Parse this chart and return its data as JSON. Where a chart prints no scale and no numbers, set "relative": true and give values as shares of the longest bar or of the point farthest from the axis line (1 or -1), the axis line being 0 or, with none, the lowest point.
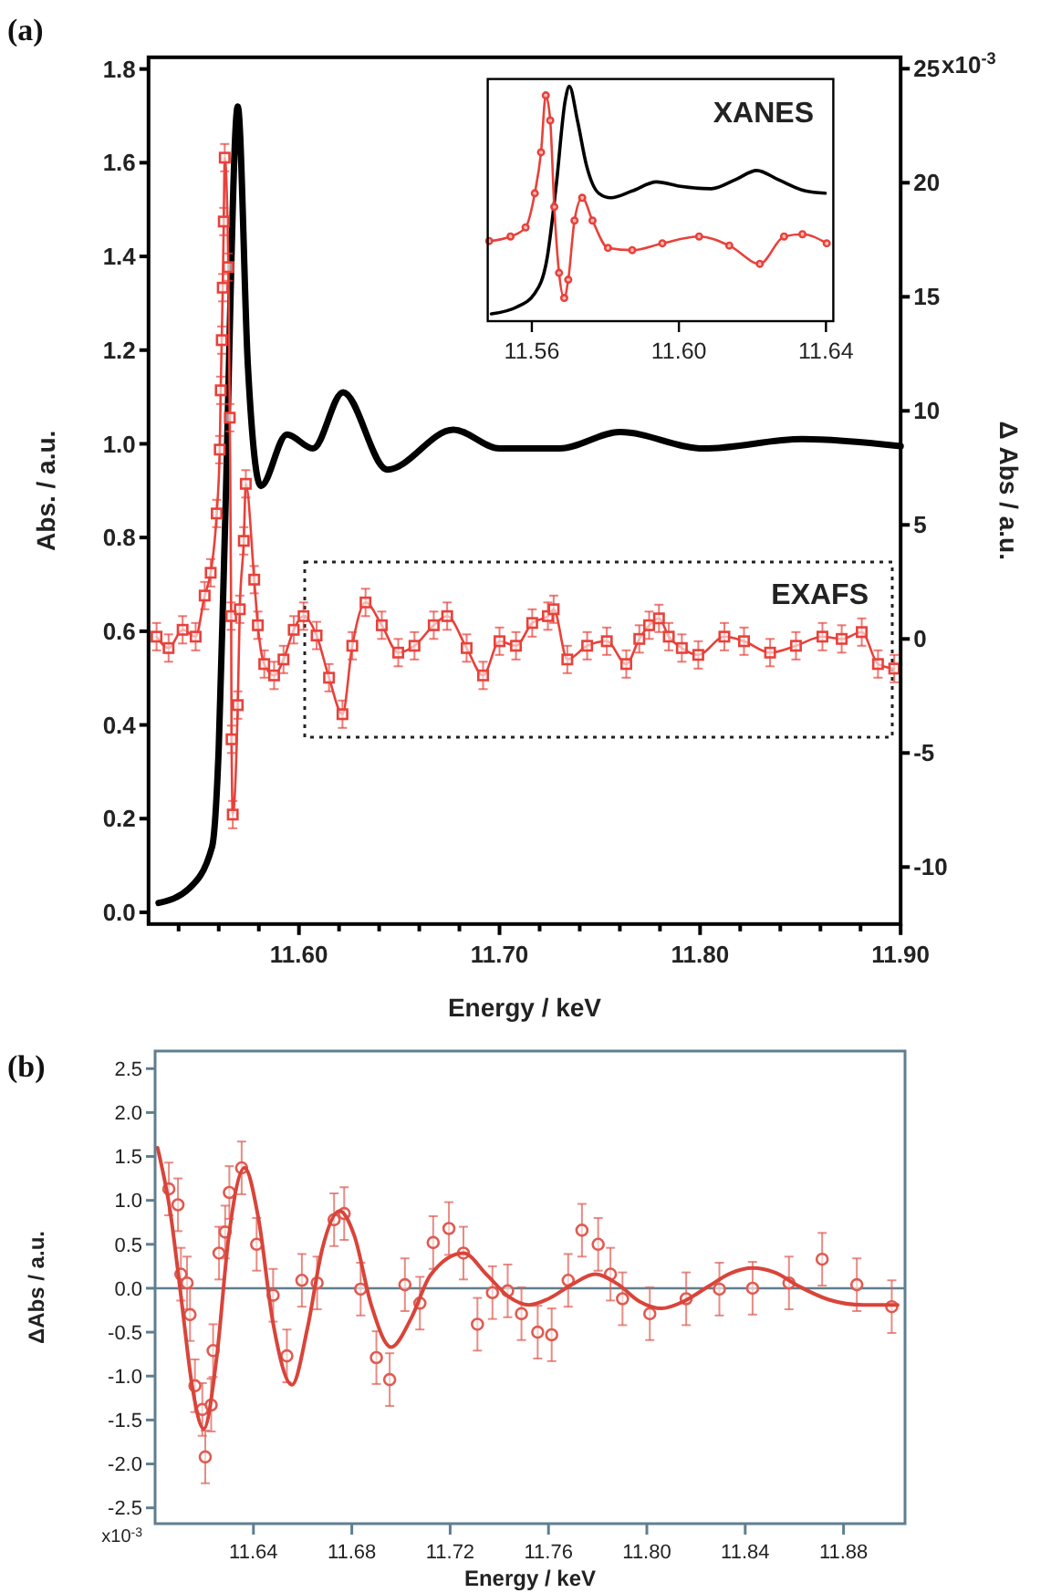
{
  "chart_data": [
    {
      "type": "line",
      "title": "(a)",
      "xlabel": "Energy / keV",
      "ylabel": "Abs. / a.u.",
      "y2label": "Δ Abs / a.u.",
      "xlim": [
        11.525,
        11.9
      ],
      "xticks": [
        {
          "value": 11.54,
          "label": null
        },
        {
          "value": 11.56,
          "label": null
        },
        {
          "value": 11.58,
          "label": null
        },
        {
          "value": 11.6,
          "label": "11.60"
        },
        {
          "value": 11.62,
          "label": null
        },
        {
          "value": 11.64,
          "label": null
        },
        {
          "value": 11.66,
          "label": null
        },
        {
          "value": 11.68,
          "label": null
        },
        {
          "value": 11.7,
          "label": "11.70"
        },
        {
          "value": 11.72,
          "label": null
        },
        {
          "value": 11.74,
          "label": null
        },
        {
          "value": 11.76,
          "label": null
        },
        {
          "value": 11.78,
          "label": null
        },
        {
          "value": 11.8,
          "label": "11.80"
        },
        {
          "value": 11.82,
          "label": null
        },
        {
          "value": 11.84,
          "label": null
        },
        {
          "value": 11.86,
          "label": null
        },
        {
          "value": 11.88,
          "label": null
        },
        {
          "value": 11.9,
          "label": "11.90"
        }
      ],
      "ylim": [
        -0.025,
        1.825
      ],
      "yticks": [
        {
          "value": 0,
          "label": "0.0"
        },
        0.2,
        0.4,
        0.6,
        0.8,
        {
          "value": 1,
          "label": "1.0"
        },
        1.2,
        1.4,
        1.6,
        1.8
      ],
      "y2lim": [
        -12.5,
        25.5
      ],
      "y2ticks": [
        -10,
        -5,
        0,
        5,
        10,
        15,
        20,
        25
      ],
      "annotations": [
        "EXAFS",
        "x10$^{-3}$"
      ],
      "series": [
        {
          "color": "#000000",
          "x": [
            11.53,
            11.545,
            11.5567,
            11.56,
            11.563,
            11.5695,
            11.5745,
            11.581,
            11.594,
            11.607,
            11.622,
            11.644,
            11.677,
            11.7,
            11.73,
            11.76,
            11.802,
            11.851,
            11.9
          ],
          "values": [
            0.02,
            0.05,
            0.14,
            0.35,
            0.8,
            1.72,
            1.17,
            0.91,
            1.02,
            0.99,
            1.11,
            0.945,
            1.03,
            0.99,
            0.99,
            1.025,
            0.99,
            1.01,
            0.995
          ]
        },
        {
          "axis": "y2",
          "marker": "square",
          "color": "#e8413a",
          "x": [
            11.529,
            11.535,
            11.542,
            11.5485,
            11.553,
            11.556,
            11.559,
            11.5605,
            11.561,
            11.5615,
            11.562,
            11.5625,
            11.563,
            11.5648,
            11.5655,
            11.5662,
            11.5664,
            11.567,
            11.5695,
            11.5705,
            11.5725,
            11.5735,
            11.5777,
            11.5795,
            11.5827,
            11.5876,
            11.5923,
            11.5974,
            11.6023,
            11.6088,
            11.615,
            11.6217,
            11.6266,
            11.6332,
            11.6413,
            11.6495,
            11.6576,
            11.6672,
            11.6739,
            11.6836,
            11.6918,
            11.7,
            11.7082,
            11.7163,
            11.7241,
            11.727,
            11.7338,
            11.7437,
            11.7535,
            11.7632,
            11.7697,
            11.7746,
            11.7795,
            11.7844,
            11.7909,
            11.7991,
            11.8121,
            11.8219,
            11.8349,
            11.8478,
            11.861,
            11.8706,
            11.8806,
            11.8887,
            11.8968
          ],
          "values": [
            0.1,
            -0.4,
            0.4,
            0.1,
            1.9,
            2.9,
            5.5,
            8.3,
            10.9,
            13.1,
            15.4,
            18.3,
            21.1,
            16.3,
            9.7,
            1.0,
            -4.4,
            -7.7,
            -2.9,
            1.3,
            4.3,
            6.8,
            2.6,
            0.6,
            -1.1,
            -1.6,
            -0.9,
            0.4,
            1.0,
            0.15,
            -1.7,
            -3.3,
            -0.3,
            1.6,
            0.6,
            -0.6,
            -0.3,
            0.6,
            1.0,
            -0.4,
            -1.6,
            -0.1,
            -0.3,
            0.7,
            1.0,
            1.3,
            -0.9,
            -0.3,
            -0.1,
            -1.1,
            0.0,
            0.6,
            0.9,
            0.1,
            -0.4,
            -0.7,
            0.1,
            -0.1,
            -0.6,
            -0.3,
            0.1,
            0.0,
            0.3,
            -1.1,
            -1.3
          ],
          "errors": [
            0.6,
            0.6,
            0.6,
            0.6,
            0.6,
            0.6,
            0.6,
            0.6,
            0.6,
            0.6,
            0.6,
            0.6,
            0.6,
            0.6,
            0.6,
            0.6,
            0.6,
            0.6,
            0.6,
            0.6,
            0.6,
            0.6,
            0.6,
            0.6,
            0.6,
            0.6,
            0.6,
            0.6,
            0.6,
            0.6,
            0.6,
            0.6,
            0.6,
            0.6,
            0.6,
            0.6,
            0.6,
            0.6,
            0.6,
            0.6,
            0.6,
            0.6,
            0.6,
            0.6,
            0.6,
            0.6,
            0.6,
            0.6,
            0.6,
            0.6,
            0.6,
            0.6,
            0.6,
            0.6,
            0.6,
            0.6,
            0.6,
            0.6,
            0.6,
            0.6,
            0.6,
            0.6,
            0.6,
            0.6,
            0.6
          ]
        }
      ]
    },
    {
      "type": "line",
      "relative": true,
      "annotations": [
        "XANES"
      ],
      "xlim": [
        11.548,
        11.642
      ],
      "xticks": [
        11.56,
        {
          "value": 11.6,
          "label": "11.60"
        },
        11.64
      ],
      "series": [
        {
          "color": "#000000",
          "x": [
            11.549,
            11.5559,
            11.5608,
            11.5641,
            11.5666,
            11.5691,
            11.5702,
            11.5724,
            11.5749,
            11.5782,
            11.5815,
            11.5873,
            11.5939,
            11.6005,
            11.6088,
            11.6154,
            11.6212,
            11.627,
            11.6344,
            11.6398
          ],
          "values": [
            0,
            0.03,
            0.09,
            0.24,
            0.56,
            0.94,
            1.0,
            0.85,
            0.65,
            0.53,
            0.51,
            0.54,
            0.58,
            0.56,
            0.55,
            0.59,
            0.63,
            0.59,
            0.54,
            0.53
          ]
        },
        {
          "marker": "circle",
          "color": "#e8413a",
          "x": [
            11.5484,
            11.5542,
            11.5583,
            11.5608,
            11.5625,
            11.5638,
            11.565,
            11.5661,
            11.5674,
            11.5688,
            11.5699,
            11.5716,
            11.5737,
            11.5765,
            11.5807,
            11.5873,
            11.5955,
            11.6055,
            11.6137,
            11.622,
            11.6286,
            11.6336,
            11.6402
          ],
          "values": [
            0.32,
            0.34,
            0.38,
            0.53,
            0.71,
            0.96,
            0.85,
            0.47,
            0.18,
            0.07,
            0.15,
            0.41,
            0.51,
            0.41,
            0.29,
            0.28,
            0.31,
            0.34,
            0.3,
            0.22,
            0.34,
            0.35,
            0.31
          ]
        }
      ]
    },
    {
      "type": "scatter",
      "title": "(b)",
      "xlabel": "Energy / keV",
      "ylabel": "ΔAbs / a.u.",
      "xlim": [
        11.6,
        11.905
      ],
      "xticks": [
        11.64,
        11.68,
        11.72,
        11.76,
        {
          "value": 11.8,
          "label": "11.80"
        },
        11.84,
        11.88
      ],
      "annotations": [
        "x10$^{-3}$"
      ],
      "ylim": [
        -2.68,
        2.7
      ],
      "yticks": [
        -2.5,
        {
          "value": -2,
          "label": "-2.0"
        },
        -1.5,
        {
          "value": -1,
          "label": "-1.0"
        },
        -0.5,
        {
          "value": 0,
          "label": "0.0"
        },
        0.5,
        {
          "value": 1,
          "label": "1.0"
        },
        1.5,
        {
          "value": 2,
          "label": "2.0"
        },
        2.5
      ],
      "ref_lines": [
        {
          "axis": "y",
          "value": 0,
          "color": "#5f7f8f"
        }
      ],
      "series": [
        {
          "marker": "circle",
          "color": "#e05a50",
          "x": [
            11.6056,
            11.6093,
            11.6105,
            11.613,
            11.6142,
            11.6162,
            11.6192,
            11.6204,
            11.6228,
            11.6236,
            11.626,
            11.6285,
            11.6302,
            11.6352,
            11.6413,
            11.648,
            11.6536,
            11.6597,
            11.6659,
            11.6728,
            11.6769,
            11.6836,
            11.69,
            11.6954,
            11.7016,
            11.7077,
            11.7131,
            11.7195,
            11.7254,
            11.7311,
            11.7372,
            11.7434,
            11.749,
            11.7556,
            11.7613,
            11.768,
            11.7736,
            11.7802,
            11.7852,
            11.7901,
            11.8012,
            11.816,
            11.8295,
            11.843,
            11.8578,
            11.8713,
            11.8854,
            11.8996
          ],
          "values": [
            1.13,
            0.95,
            0.16,
            0.06,
            -0.3,
            -1.11,
            -1.38,
            -1.92,
            -1.33,
            -0.71,
            0.4,
            0.64,
            1.09,
            1.37,
            0.5,
            -0.08,
            -0.77,
            0.09,
            0.06,
            0.78,
            0.85,
            -0.01,
            -0.79,
            -1.04,
            0.04,
            -0.17,
            0.52,
            0.68,
            0.4,
            -0.41,
            -0.05,
            -0.03,
            -0.29,
            -0.5,
            -0.53,
            0.09,
            0.66,
            0.5,
            0.16,
            -0.12,
            -0.29,
            -0.12,
            -0.01,
            0.0,
            0.06,
            0.33,
            0.04,
            -0.21
          ],
          "errors": [
            0.3,
            0.3,
            0.3,
            0.3,
            0.3,
            0.3,
            0.3,
            0.3,
            0.3,
            0.3,
            0.3,
            0.3,
            0.3,
            0.3,
            0.3,
            0.3,
            0.3,
            0.3,
            0.3,
            0.3,
            0.3,
            0.3,
            0.3,
            0.3,
            0.3,
            0.3,
            0.3,
            0.3,
            0.3,
            0.3,
            0.3,
            0.3,
            0.3,
            0.3,
            0.3,
            0.3,
            0.3,
            0.3,
            0.3,
            0.3,
            0.3,
            0.3,
            0.3,
            0.3,
            0.3,
            0.3,
            0.3,
            0.3
          ]
        },
        {
          "type": "line",
          "color": "#d9443a",
          "x": [
            11.601,
            11.606,
            11.611,
            11.615,
            11.6198,
            11.625,
            11.63,
            11.6364,
            11.642,
            11.648,
            11.6557,
            11.662,
            11.668,
            11.675,
            11.681,
            11.688,
            11.696,
            11.704,
            11.712,
            11.7254,
            11.735,
            11.744,
            11.752,
            11.76,
            11.77,
            11.779,
            11.788,
            11.797,
            11.806,
            11.815,
            11.825,
            11.834,
            11.843,
            11.852,
            11.862,
            11.874,
            11.888,
            11.902
          ],
          "values": [
            1.6,
            0.9,
            -0.2,
            -1.1,
            -1.6,
            -0.8,
            0.6,
            1.37,
            0.8,
            -0.4,
            -1.1,
            -0.45,
            0.45,
            0.88,
            0.6,
            -0.2,
            -0.67,
            -0.35,
            0.15,
            0.4,
            0.15,
            -0.1,
            -0.19,
            -0.12,
            0.05,
            0.16,
            0.05,
            -0.15,
            -0.23,
            -0.15,
            0.02,
            0.17,
            0.23,
            0.18,
            0.02,
            -0.13,
            -0.19,
            -0.19
          ]
        }
      ]
    }
  ]
}
